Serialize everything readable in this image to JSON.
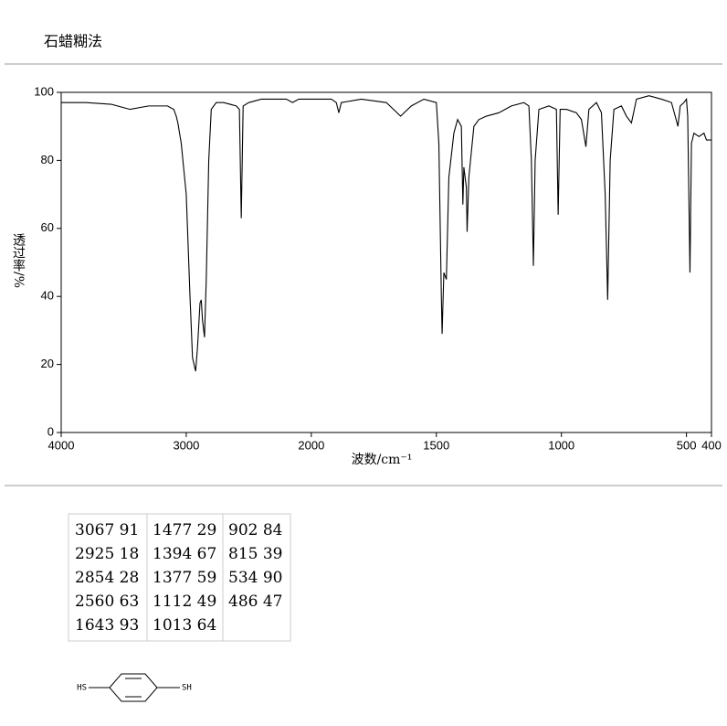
{
  "header": {
    "title": "石蜡糊法"
  },
  "chart_data": {
    "type": "line",
    "x_label": "波数/cm⁻¹",
    "y_label": "透过率/%",
    "xlim": [
      4000,
      400
    ],
    "x_scale_change": 2000,
    "xticks": [
      4000,
      3000,
      2000,
      1500,
      1000,
      500,
      400
    ],
    "ylim": [
      0,
      100
    ],
    "yticks": [
      0,
      20,
      40,
      60,
      80,
      100
    ],
    "color": "#000000",
    "x": [
      4000,
      3800,
      3600,
      3450,
      3300,
      3150,
      3100,
      3080,
      3067,
      3040,
      3000,
      2970,
      2950,
      2925,
      2910,
      2890,
      2880,
      2870,
      2854,
      2840,
      2820,
      2800,
      2760,
      2700,
      2600,
      2575,
      2560,
      2545,
      2500,
      2400,
      2200,
      2150,
      2100,
      2000,
      1920,
      1900,
      1890,
      1880,
      1800,
      1700,
      1643,
      1600,
      1550,
      1500,
      1490,
      1480,
      1477,
      1470,
      1460,
      1450,
      1430,
      1415,
      1400,
      1394,
      1390,
      1380,
      1377,
      1370,
      1350,
      1330,
      1300,
      1250,
      1200,
      1150,
      1130,
      1120,
      1112,
      1105,
      1090,
      1050,
      1020,
      1013,
      1005,
      980,
      940,
      920,
      902,
      890,
      860,
      840,
      825,
      815,
      805,
      790,
      760,
      740,
      720,
      700,
      650,
      600,
      560,
      545,
      534,
      525,
      510,
      500,
      495,
      486,
      480,
      470,
      450,
      430,
      420,
      400
    ],
    "values": [
      97,
      97,
      96.5,
      95,
      96,
      96,
      95,
      93,
      91,
      85,
      70,
      40,
      22,
      18,
      25,
      38,
      39,
      33,
      28,
      45,
      80,
      95,
      97,
      97,
      96,
      95,
      63,
      96,
      97,
      98,
      98,
      97,
      98,
      98,
      98,
      97,
      94,
      97,
      98,
      97,
      93,
      96,
      98,
      97,
      85,
      40,
      29,
      47,
      45,
      75,
      88,
      92,
      90,
      67,
      78,
      72,
      59,
      75,
      90,
      92,
      93,
      94,
      96,
      97,
      96,
      80,
      49,
      80,
      95,
      96,
      95,
      64,
      95,
      95,
      94,
      92,
      84,
      95,
      97,
      94,
      70,
      39,
      80,
      95,
      96,
      93,
      91,
      98,
      99,
      98,
      97,
      93,
      90,
      96,
      97,
      98,
      93,
      47,
      85,
      88,
      87,
      88,
      86,
      86
    ]
  },
  "table": {
    "columns": [
      [
        [
          3067,
          91
        ],
        [
          2925,
          18
        ],
        [
          2854,
          28
        ],
        [
          2560,
          63
        ],
        [
          1643,
          93
        ]
      ],
      [
        [
          1477,
          29
        ],
        [
          1394,
          67
        ],
        [
          1377,
          59
        ],
        [
          1112,
          49
        ],
        [
          1013,
          64
        ]
      ],
      [
        [
          902,
          84
        ],
        [
          815,
          39
        ],
        [
          534,
          90
        ],
        [
          486,
          47
        ]
      ]
    ]
  },
  "structure": {
    "left_group": "HS",
    "right_group": "SH"
  }
}
